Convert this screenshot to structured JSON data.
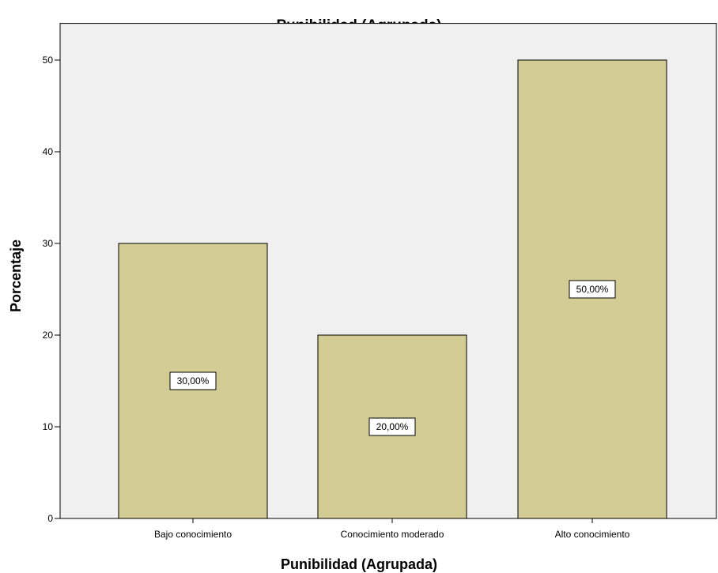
{
  "chart_data": {
    "type": "bar",
    "title": "Punibilidad (Agrupada)",
    "xlabel": "Punibilidad (Agrupada)",
    "ylabel": "Porcentaje",
    "categories": [
      "Bajo conocimiento",
      "Conocimiento moderado",
      "Alto conocimiento"
    ],
    "values": [
      30,
      20,
      50
    ],
    "data_labels": [
      "30,00%",
      "20,00%",
      "50,00%"
    ],
    "yticks": [
      0,
      10,
      20,
      30,
      40,
      50
    ],
    "ylim": [
      0,
      54
    ],
    "grid": false,
    "legend": "none",
    "colors": {
      "bar_fill": "#d3cd95",
      "bar_stroke": "#000000",
      "plot_background": "#f0f0f0",
      "label_box_fill": "#ffffff"
    }
  }
}
